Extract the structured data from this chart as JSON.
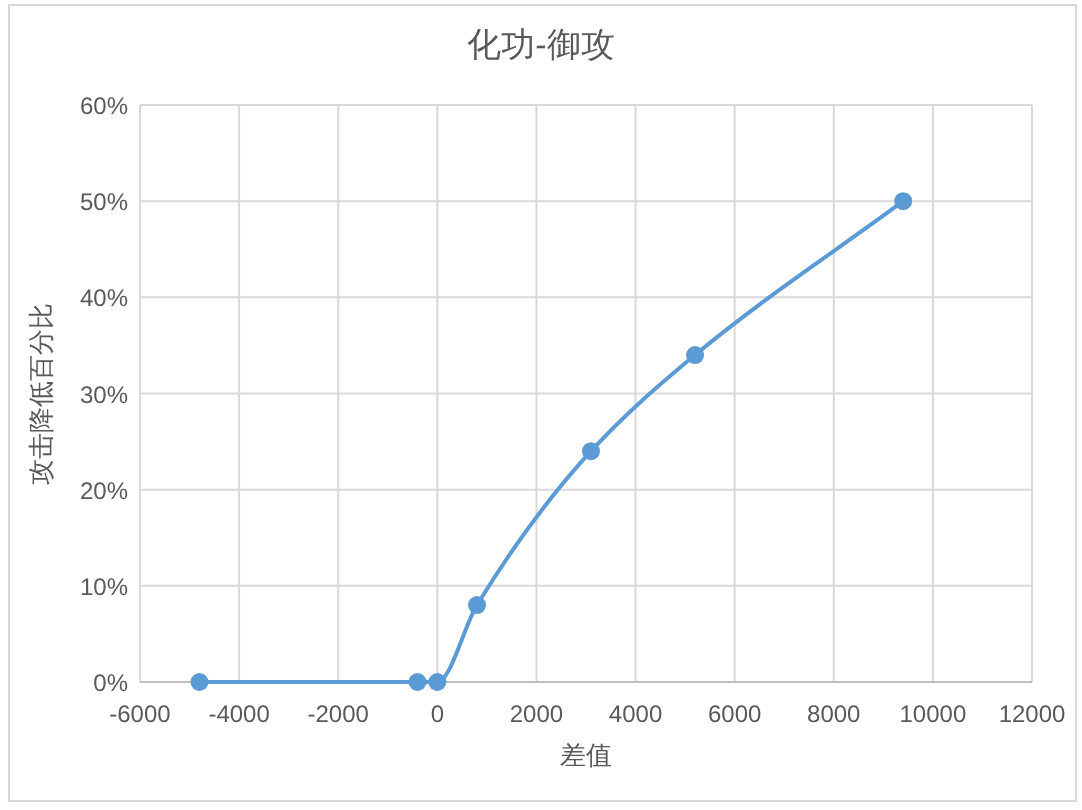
{
  "chart_data": {
    "type": "line",
    "title": "化功-御攻",
    "xlabel": "差值",
    "ylabel": "攻击降低百分比",
    "x": [
      -4800,
      -400,
      0,
      800,
      3100,
      5200,
      9400
    ],
    "series": [
      {
        "color": "#5b9bd5",
        "values": [
          0,
          0,
          0,
          8,
          24,
          34,
          50
        ]
      }
    ],
    "xlim": [
      -6000,
      12000
    ],
    "xticks": [
      -6000,
      -4000,
      -2000,
      0,
      2000,
      4000,
      6000,
      8000,
      10000,
      12000
    ],
    "ylim": [
      0,
      60
    ],
    "yticks": [
      {
        "value": 0,
        "label": "0%"
      },
      {
        "value": 10,
        "label": "10%"
      },
      {
        "value": 20,
        "label": "20%"
      },
      {
        "value": 30,
        "label": "30%"
      },
      {
        "value": 40,
        "label": "40%"
      },
      {
        "value": 50,
        "label": "50%"
      },
      {
        "value": 60,
        "label": "60%"
      }
    ],
    "grid": true,
    "marker": "circle",
    "line_style": "solid"
  }
}
